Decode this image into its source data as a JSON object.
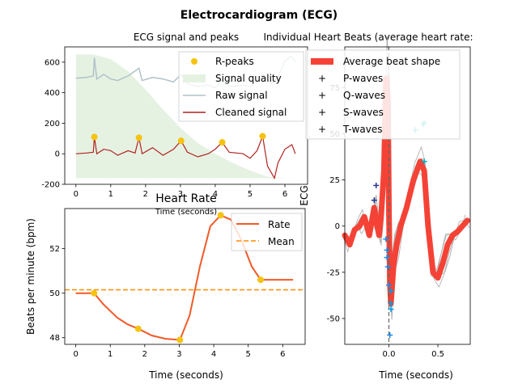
{
  "figure": {
    "title": "Electrocardiogram (ECG)"
  },
  "chart_data": [
    {
      "type": "line",
      "title": "ECG signal and peaks",
      "xlabel": "Time (seconds)",
      "ylabel": "",
      "xlim": [
        -0.32,
        6.65
      ],
      "ylim": [
        -200,
        700
      ],
      "xticks": [
        "0",
        "1",
        "2",
        "3",
        "4",
        "5",
        "6"
      ],
      "yticks": [
        "-200",
        "0",
        "200",
        "400",
        "600"
      ],
      "legend": {
        "position": "top-right",
        "entries": [
          "R-peaks",
          "Signal quality",
          "Raw signal",
          "Cleaned signal"
        ]
      },
      "colors": {
        "rpeaks": "#f5c30f",
        "quality": "#e5f2e2",
        "raw": "#b0c2c8",
        "cleaned": "#b22222"
      },
      "series": [
        {
          "name": "R-peaks",
          "kind": "scatter",
          "x": [
            0.53,
            1.81,
            3.02,
            4.2,
            5.36
          ],
          "y": [
            110,
            105,
            85,
            75,
            115
          ]
        },
        {
          "name": "Signal quality",
          "kind": "area",
          "x": [
            0,
            0.5,
            1.0,
            1.5,
            2.0,
            2.5,
            3.0,
            3.5,
            4.0,
            4.5,
            5.0,
            5.5,
            6.0,
            6.3
          ],
          "y": [
            650,
            650,
            620,
            540,
            420,
            290,
            170,
            70,
            0,
            -60,
            -110,
            -150,
            -160,
            -160
          ]
        },
        {
          "name": "Raw signal",
          "kind": "line",
          "x": [
            0,
            0.3,
            0.5,
            0.53,
            0.6,
            0.8,
            1.0,
            1.2,
            1.5,
            1.81,
            1.9,
            2.2,
            2.5,
            2.8,
            3.02,
            3.2,
            3.5,
            3.8,
            4.0,
            4.2,
            4.4,
            4.8,
            5.0,
            5.36,
            5.6,
            5.8,
            6.0,
            6.2,
            6.3
          ],
          "y": [
            495,
            500,
            510,
            630,
            490,
            520,
            490,
            480,
            510,
            560,
            480,
            500,
            490,
            470,
            520,
            460,
            440,
            450,
            430,
            480,
            440,
            450,
            440,
            520,
            460,
            500,
            610,
            640,
            600
          ]
        },
        {
          "name": "Cleaned signal",
          "kind": "line",
          "x": [
            0,
            0.3,
            0.5,
            0.53,
            0.6,
            0.8,
            1.0,
            1.2,
            1.5,
            1.7,
            1.81,
            1.9,
            2.2,
            2.5,
            2.8,
            3.02,
            3.2,
            3.5,
            3.8,
            4.0,
            4.2,
            4.4,
            4.8,
            5.0,
            5.2,
            5.36,
            5.5,
            5.6,
            5.7,
            5.8,
            6.0,
            6.2,
            6.3
          ],
          "y": [
            0,
            5,
            10,
            110,
            0,
            30,
            20,
            -10,
            20,
            5,
            105,
            0,
            40,
            -10,
            30,
            85,
            10,
            -20,
            0,
            30,
            75,
            10,
            0,
            -30,
            20,
            115,
            -80,
            -120,
            -160,
            -60,
            30,
            60,
            0
          ]
        }
      ]
    },
    {
      "type": "line",
      "title": "Heart Rate",
      "xlabel": "Time (seconds)",
      "ylabel": "Beats per minute (bpm)",
      "xlim": [
        -0.32,
        6.65
      ],
      "ylim": [
        47.7,
        53.8
      ],
      "xticks": [
        "0",
        "1",
        "2",
        "3",
        "4",
        "5",
        "6"
      ],
      "yticks": [
        "48",
        "50",
        "52"
      ],
      "legend": {
        "position": "top-right",
        "entries": [
          "Rate",
          "Mean"
        ]
      },
      "colors": {
        "rate": "#f05a28",
        "mean": "#ff8c00",
        "peaks": "#f5c30f"
      },
      "series": [
        {
          "name": "Rate",
          "kind": "line",
          "x": [
            0,
            0.53,
            0.8,
            1.2,
            1.5,
            1.81,
            2.2,
            2.6,
            3.02,
            3.3,
            3.6,
            3.9,
            4.2,
            4.5,
            4.8,
            5.1,
            5.36,
            5.6,
            6.3
          ],
          "y": [
            50.0,
            50.0,
            49.5,
            48.9,
            48.6,
            48.4,
            48.1,
            47.95,
            47.9,
            49.0,
            51.2,
            53.0,
            53.5,
            53.3,
            52.4,
            51.2,
            50.6,
            50.6,
            50.6
          ]
        },
        {
          "name": "Mean",
          "kind": "hline",
          "y": 50.15
        },
        {
          "name": "Peaks",
          "kind": "scatter",
          "x": [
            0.53,
            1.81,
            3.02,
            4.2,
            5.36
          ],
          "y": [
            50.0,
            48.4,
            47.9,
            53.5,
            50.6
          ]
        }
      ]
    },
    {
      "type": "line",
      "title": "Individual Heart Beats (average heart rate:",
      "xlabel": "Time (seconds)",
      "ylabel": "ECG",
      "xlim": [
        -0.45,
        0.83
      ],
      "ylim": [
        -64,
        97
      ],
      "xticks": [
        "0.0",
        "0.5"
      ],
      "yticks": [
        "-50",
        "-25",
        "0",
        "25",
        "50",
        "75"
      ],
      "legend": {
        "position": "top-left",
        "entries": [
          "Average beat shape",
          "P-waves",
          "Q-waves",
          "S-waves",
          "T-waves"
        ]
      },
      "colors": {
        "average": "#f44336",
        "beats": "#a8a8a8",
        "p": "#283593",
        "q": "#1e88e5",
        "s": "#039be5",
        "t": "#00acc1",
        "zero": "#666666"
      },
      "series": [
        {
          "name": "Average beat shape",
          "kind": "line",
          "x": [
            -0.45,
            -0.4,
            -0.35,
            -0.3,
            -0.25,
            -0.2,
            -0.15,
            -0.12,
            -0.1,
            -0.08,
            -0.05,
            -0.03,
            -0.01,
            0.0,
            0.01,
            0.02,
            0.03,
            0.05,
            0.08,
            0.12,
            0.18,
            0.25,
            0.32,
            0.36,
            0.4,
            0.45,
            0.5,
            0.55,
            0.6,
            0.65,
            0.7,
            0.75,
            0.8
          ],
          "y": [
            -5,
            -10,
            -2,
            0,
            5,
            -5,
            10,
            0,
            -5,
            5,
            30,
            80,
            70,
            10,
            -30,
            -42,
            -35,
            -20,
            -10,
            0,
            10,
            25,
            35,
            30,
            0,
            -25,
            -28,
            -20,
            -10,
            -5,
            -3,
            0,
            3
          ]
        },
        {
          "name": "P-waves",
          "kind": "scatter",
          "x": [
            -0.13,
            -0.15
          ],
          "y": [
            22,
            14
          ]
        },
        {
          "name": "Q-waves",
          "kind": "scatter",
          "x": [
            -0.03,
            -0.02,
            -0.02,
            -0.01,
            0.0,
            0.01
          ],
          "y": [
            -7,
            -13,
            -17,
            -22,
            -32,
            -59
          ]
        },
        {
          "name": "S-waves",
          "kind": "scatter",
          "x": [
            0.02,
            0.02,
            0.02
          ],
          "y": [
            -35,
            -42,
            -45
          ]
        },
        {
          "name": "T-waves",
          "kind": "scatter",
          "x": [
            0.27,
            0.35,
            0.36,
            0.36
          ],
          "y": [
            52,
            55,
            56,
            35
          ]
        }
      ]
    }
  ]
}
